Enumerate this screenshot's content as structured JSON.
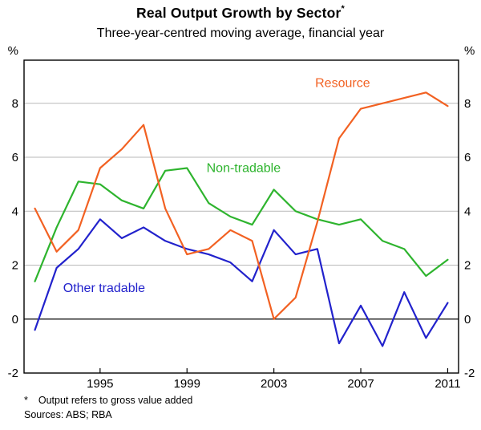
{
  "title": "Real Output Growth by Sector",
  "title_footnote_marker": "*",
  "subtitle": "Three-year-centred moving average, financial year",
  "footnotes": {
    "marker": "*",
    "text": "Output refers to gross value added",
    "sources": "Sources: ABS; RBA"
  },
  "colors": {
    "resource": "#f26122",
    "non_tradable": "#2eb42e",
    "other_tradable": "#2222cc",
    "grid": "#b9b9b9",
    "zero_line": "#000000",
    "frame": "#000000",
    "text": "#000000"
  },
  "chart_data": {
    "type": "line",
    "title": "Real Output Growth by Sector",
    "subtitle": "Three-year-centred moving average, financial year",
    "y_unit": "%",
    "x": [
      1992,
      1993,
      1994,
      1995,
      1996,
      1997,
      1998,
      1999,
      2000,
      2001,
      2002,
      2003,
      2004,
      2005,
      2006,
      2007,
      2008,
      2009,
      2010,
      2011
    ],
    "series": [
      {
        "name": "Resource",
        "color_key": "resource",
        "values": [
          4.1,
          2.5,
          3.3,
          5.6,
          6.3,
          7.2,
          4.1,
          2.4,
          2.6,
          3.3,
          2.9,
          0.0,
          0.8,
          3.6,
          6.7,
          7.8,
          8.0,
          8.2,
          8.4,
          7.9
        ]
      },
      {
        "name": "Non-tradable",
        "color_key": "non_tradable",
        "values": [
          1.4,
          3.4,
          5.1,
          5.0,
          4.4,
          4.1,
          5.5,
          5.6,
          4.3,
          3.8,
          3.5,
          4.8,
          4.0,
          3.7,
          3.5,
          3.7,
          2.9,
          2.6,
          1.6,
          2.2
        ]
      },
      {
        "name": "Other tradable",
        "color_key": "other_tradable",
        "values": [
          -0.4,
          1.9,
          2.6,
          3.7,
          3.0,
          3.4,
          2.9,
          2.6,
          2.4,
          2.1,
          1.4,
          3.3,
          2.4,
          2.6,
          -0.9,
          0.5,
          -1.0,
          1.0,
          -0.7,
          0.6
        ]
      }
    ],
    "xlim": [
      1991.5,
      2011.5
    ],
    "ylim": [
      -2,
      9.6
    ],
    "yticks": [
      -2,
      0,
      2,
      4,
      6,
      8
    ],
    "xticks": [
      1995,
      1999,
      2003,
      2007,
      2011
    ],
    "grid": "horizontal",
    "legend": "inline-annotations",
    "annotations": [
      {
        "text": "Resource",
        "x": 2004.9,
        "y": 8.6,
        "color_key": "resource",
        "anchor": "start"
      },
      {
        "text": "Non-tradable",
        "x": 1999.9,
        "y": 5.45,
        "color_key": "non_tradable",
        "anchor": "start"
      },
      {
        "text": "Other tradable",
        "x": 1993.3,
        "y": 1.0,
        "color_key": "other_tradable",
        "anchor": "start"
      }
    ]
  }
}
